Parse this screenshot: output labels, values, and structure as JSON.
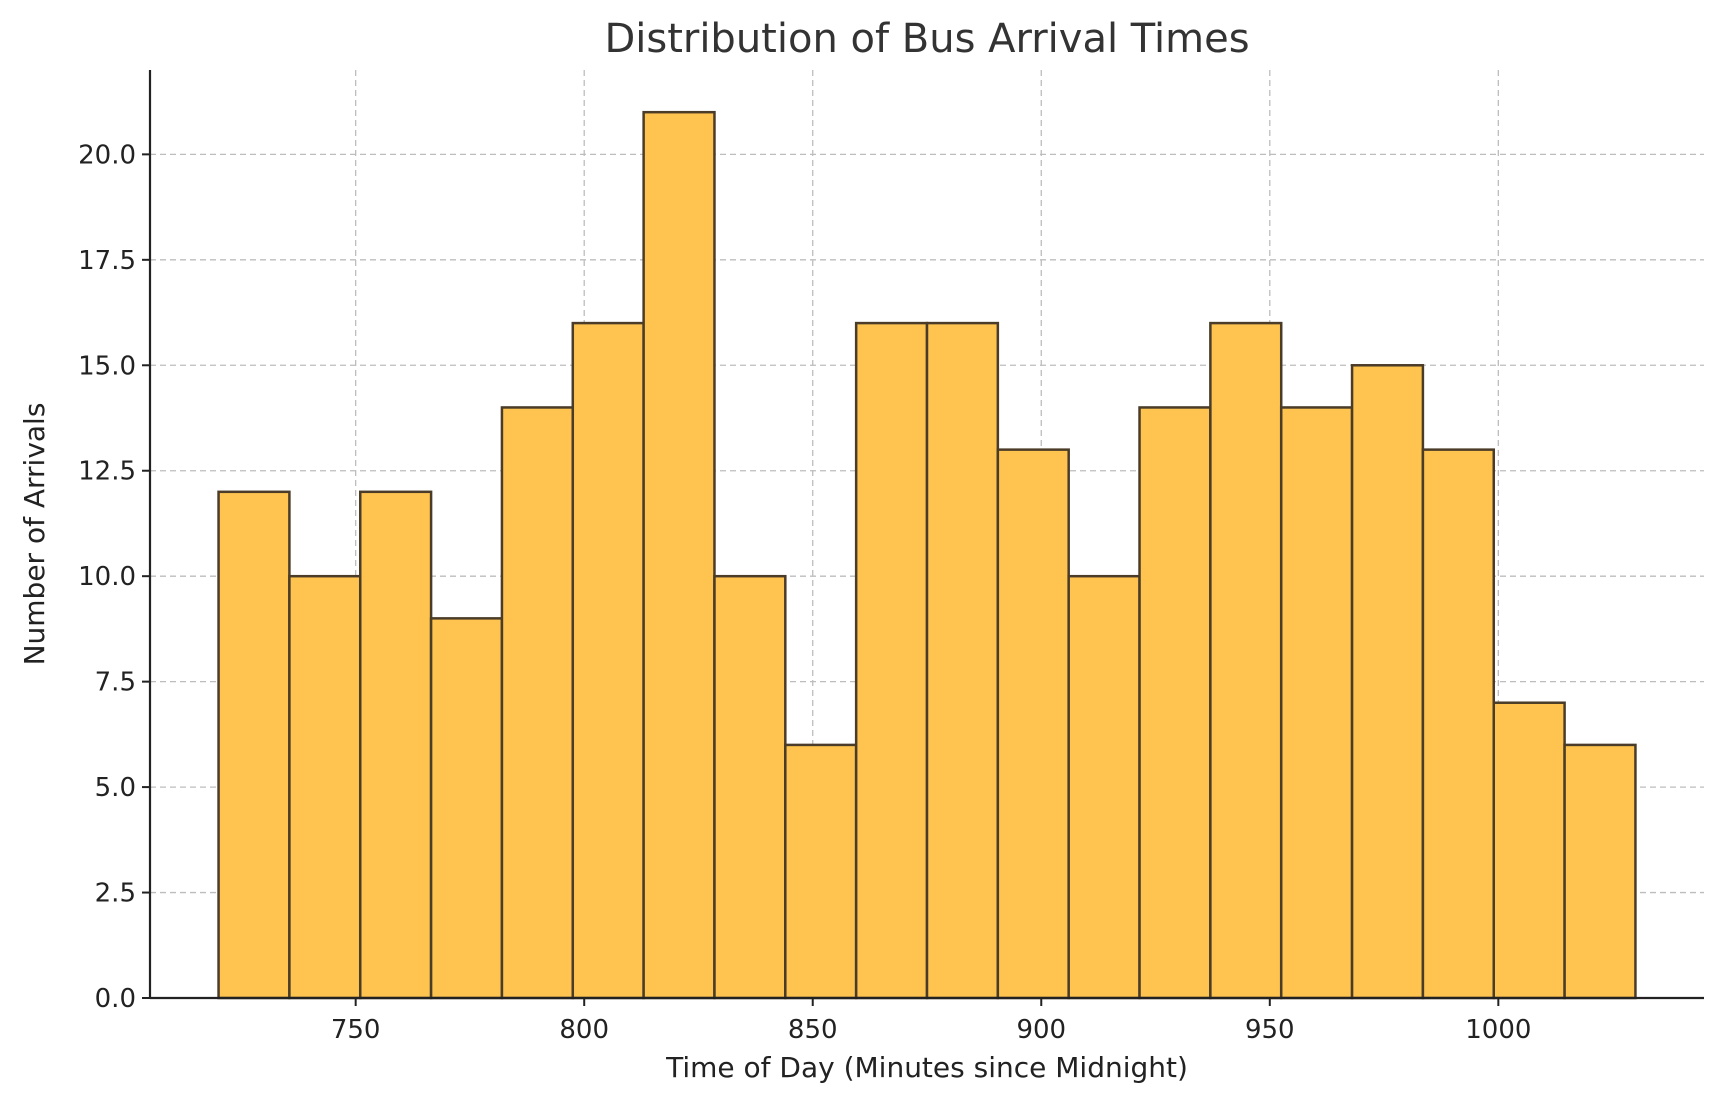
{
  "chart_data": {
    "type": "bar",
    "title": "Distribution of Bus Arrival Times",
    "xlabel": "Time of Day (Minutes since Midnight)",
    "ylabel": "Number of Arrivals",
    "bins": [
      {
        "start": 720,
        "end": 735.5,
        "value": 12
      },
      {
        "start": 735.5,
        "end": 751,
        "value": 10
      },
      {
        "start": 751,
        "end": 766.5,
        "value": 12
      },
      {
        "start": 766.5,
        "end": 782,
        "value": 9
      },
      {
        "start": 782,
        "end": 797.5,
        "value": 14
      },
      {
        "start": 797.5,
        "end": 813,
        "value": 16
      },
      {
        "start": 813,
        "end": 828.5,
        "value": 21
      },
      {
        "start": 828.5,
        "end": 844,
        "value": 10
      },
      {
        "start": 844,
        "end": 859.5,
        "value": 6
      },
      {
        "start": 859.5,
        "end": 875,
        "value": 16
      },
      {
        "start": 875,
        "end": 890.5,
        "value": 16
      },
      {
        "start": 890.5,
        "end": 906,
        "value": 13
      },
      {
        "start": 906,
        "end": 921.5,
        "value": 10
      },
      {
        "start": 921.5,
        "end": 937,
        "value": 14
      },
      {
        "start": 937,
        "end": 952.5,
        "value": 16
      },
      {
        "start": 952.5,
        "end": 968,
        "value": 14
      },
      {
        "start": 968,
        "end": 983.5,
        "value": 15
      },
      {
        "start": 983.5,
        "end": 999,
        "value": 13
      },
      {
        "start": 999,
        "end": 1014.5,
        "value": 7
      },
      {
        "start": 1014.5,
        "end": 1030,
        "value": 6
      }
    ],
    "xlim": [
      705,
      1045
    ],
    "ylim": [
      0,
      22
    ],
    "xticks": [
      750,
      800,
      850,
      900,
      950,
      1000
    ],
    "xtick_labels": [
      "750",
      "800",
      "850",
      "900",
      "950",
      "1000"
    ],
    "yticks": [
      0,
      2.5,
      5,
      7.5,
      10,
      12.5,
      15,
      17.5,
      20
    ],
    "ytick_labels": [
      "0.0",
      "2.5",
      "5.0",
      "7.5",
      "10.0",
      "12.5",
      "15.0",
      "17.5",
      "20.0"
    ],
    "grid": true,
    "bar_color": "#fec44f",
    "edge_color": "#4a3c28"
  }
}
